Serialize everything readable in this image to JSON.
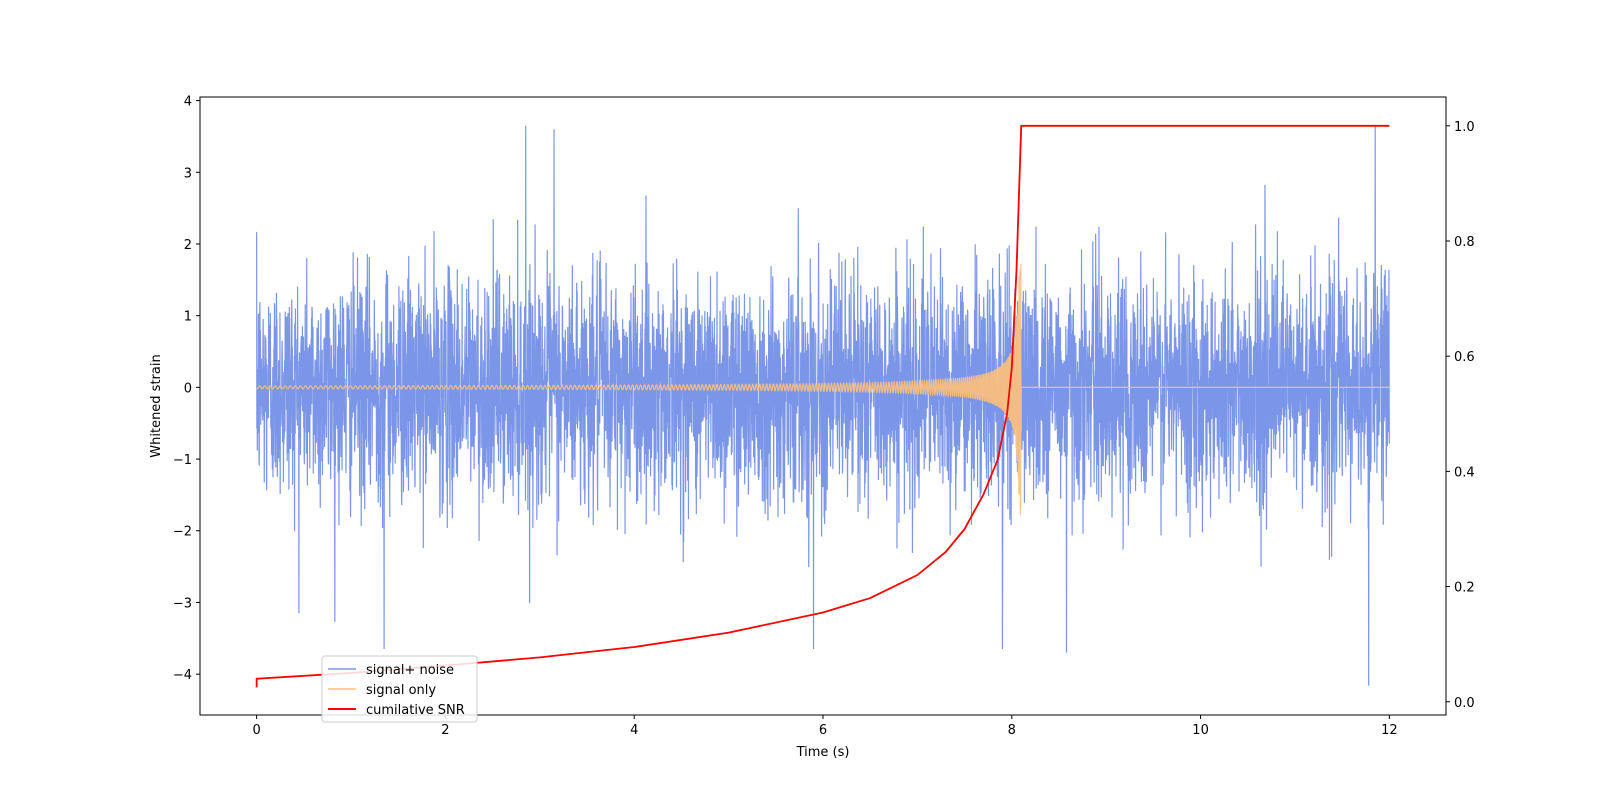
{
  "chart_data": {
    "type": "line",
    "title": "",
    "xlabel": "Time (s)",
    "ylabel": "Whitened strain",
    "y2label": "",
    "xlim": [
      -0.6,
      12.6
    ],
    "ylim": [
      -4.57,
      4.05
    ],
    "y2lim": [
      -0.023,
      1.05
    ],
    "xticks": [
      0,
      2,
      4,
      6,
      8,
      10,
      12
    ],
    "yticks": [
      -4,
      -3,
      -2,
      -1,
      0,
      1,
      2,
      3,
      4
    ],
    "y2ticks": [
      0.0,
      0.2,
      0.4,
      0.6,
      0.8,
      1.0
    ],
    "grid": false,
    "legend_position": "lower-left",
    "series": [
      {
        "name": "signal+ noise",
        "color": "#7b96e8",
        "axis": "left",
        "description_samples": {
          "x_range": [
            0,
            12
          ],
          "typical_std": 1.0,
          "min": -4.16,
          "max": 3.66,
          "notable_extremes": [
            {
              "x": 1.35,
              "y": -3.65
            },
            {
              "x": 2.85,
              "y": 3.65
            },
            {
              "x": 3.15,
              "y": 3.6
            },
            {
              "x": 5.9,
              "y": -3.65
            },
            {
              "x": 7.9,
              "y": -3.65
            },
            {
              "x": 8.58,
              "y": -3.7
            },
            {
              "x": 11.78,
              "y": -4.16
            },
            {
              "x": 11.85,
              "y": 3.66
            }
          ]
        }
      },
      {
        "name": "signal only",
        "color": "#ffc07a",
        "axis": "left",
        "chirp": {
          "t_start": 0.0,
          "t_merger": 8.1,
          "amplitude_at_start": 0.02,
          "amplitude_at_merger": 1.8,
          "post_merger_value": 0.0
        }
      },
      {
        "name": "cumilative SNR",
        "color": "#ff0000",
        "axis": "right",
        "x": [
          0.0,
          0.0,
          1.0,
          2.0,
          3.0,
          4.0,
          5.0,
          6.0,
          6.5,
          7.0,
          7.3,
          7.5,
          7.7,
          7.85,
          7.95,
          8.0,
          8.05,
          8.08,
          8.1,
          9.0,
          12.0
        ],
        "values": [
          0.025,
          0.04,
          0.05,
          0.063,
          0.077,
          0.095,
          0.12,
          0.155,
          0.18,
          0.22,
          0.26,
          0.3,
          0.36,
          0.42,
          0.5,
          0.58,
          0.75,
          0.9,
          1.0,
          1.0,
          1.0
        ]
      }
    ]
  }
}
